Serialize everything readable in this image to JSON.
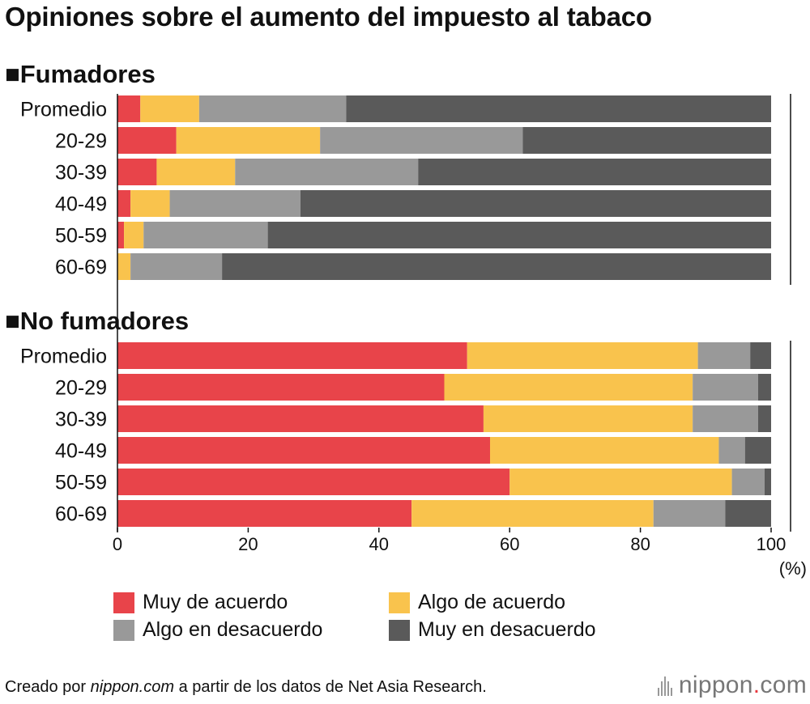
{
  "title": "Opiniones sobre el aumento del impuesto al tabaco",
  "footer": {
    "prefix": "Creado por ",
    "site": "nippon.com",
    "suffix": " a partir de los datos de Net Asia Research."
  },
  "logo": {
    "name": "nippon",
    "dot": ".",
    "tld": "com"
  },
  "chart_data": {
    "type": "bar",
    "orientation": "horizontal",
    "stacked": true,
    "x_ticks": [
      "0",
      "20",
      "40",
      "60",
      "80",
      "100"
    ],
    "x_unit": "(%)",
    "xlim": [
      0,
      100
    ],
    "legend": [
      {
        "name": "Muy de acuerdo",
        "color": "#e8444a"
      },
      {
        "name": "Algo de acuerdo",
        "color": "#f9c34d"
      },
      {
        "name": "Algo en desacuerdo",
        "color": "#999999"
      },
      {
        "name": "Muy en desacuerdo",
        "color": "#5a5a5a"
      }
    ],
    "groups": [
      {
        "heading": "■Fumadores",
        "categories": [
          "Promedio",
          "20-29",
          "30-39",
          "40-49",
          "50-59",
          "60-69"
        ],
        "series": [
          {
            "name": "Muy de acuerdo",
            "values": [
              3.5,
              9,
              6,
              2,
              1,
              0
            ]
          },
          {
            "name": "Algo de acuerdo",
            "values": [
              9,
              22,
              12,
              6,
              3,
              2
            ]
          },
          {
            "name": "Algo en desacuerdo",
            "values": [
              22.5,
              31,
              28,
              20,
              19,
              14
            ]
          },
          {
            "name": "Muy en desacuerdo",
            "values": [
              65,
              38,
              54,
              72,
              77,
              84
            ]
          }
        ]
      },
      {
        "heading": "■No fumadores",
        "categories": [
          "Promedio",
          "20-29",
          "30-39",
          "40-49",
          "50-59",
          "60-69"
        ],
        "series": [
          {
            "name": "Muy de acuerdo",
            "values": [
              53.5,
              50,
              56,
              57,
              60,
              45
            ]
          },
          {
            "name": "Algo de acuerdo",
            "values": [
              35.3,
              38,
              32,
              35,
              34,
              37
            ]
          },
          {
            "name": "Algo en desacuerdo",
            "values": [
              8,
              10,
              10,
              4,
              5,
              11
            ]
          },
          {
            "name": "Muy en desacuerdo",
            "values": [
              3.2,
              2,
              2,
              4,
              1,
              7
            ]
          }
        ]
      }
    ]
  }
}
